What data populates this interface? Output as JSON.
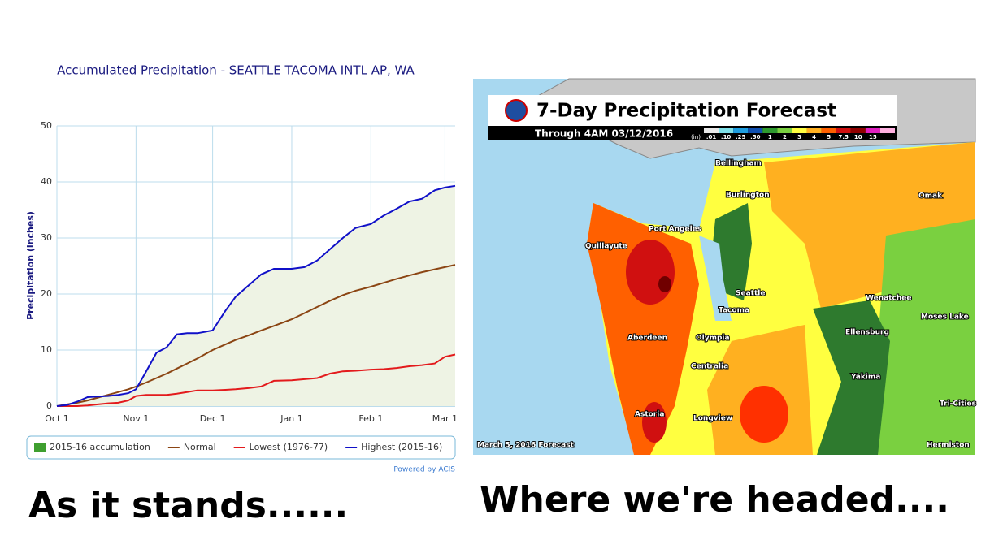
{
  "chart_data": {
    "type": "line",
    "title": "Accumulated Precipitation - SEATTLE TACOMA INTL AP, WA",
    "y_label": "Precipitation (inches)",
    "credit": "Powered by ACIS",
    "x": [
      0,
      4,
      8,
      12,
      16,
      20,
      24,
      28,
      31,
      35,
      39,
      43,
      47,
      51,
      55,
      61,
      66,
      70,
      75,
      80,
      85,
      92,
      97,
      102,
      107,
      112,
      117,
      123,
      128,
      133,
      138,
      143,
      148,
      152,
      156
    ],
    "xlim": [
      0,
      156
    ],
    "xticks": [
      {
        "value": 0,
        "label": "Oct 1"
      },
      {
        "value": 31,
        "label": "Nov 1"
      },
      {
        "value": 61,
        "label": "Dec 1"
      },
      {
        "value": 92,
        "label": "Jan 1"
      },
      {
        "value": 123,
        "label": "Feb 1"
      },
      {
        "value": 152,
        "label": "Mar 1"
      }
    ],
    "ylim": [
      0,
      50
    ],
    "yticks": [
      0,
      10,
      20,
      30,
      40,
      50
    ],
    "grid": true,
    "series": [
      {
        "name": "2015-16 accumulation",
        "color": "#3f9f2f",
        "fill": "#eef3e4",
        "style": "area",
        "values": [
          0,
          0.2,
          0.8,
          1.6,
          1.7,
          1.8,
          2,
          2.3,
          3,
          6.2,
          9.5,
          10.5,
          12.8,
          13,
          13,
          13.5,
          17,
          19.5,
          21.5,
          23.5,
          24.5,
          24.5,
          24.8,
          26,
          28,
          30,
          31.8,
          32.5,
          34,
          35.2,
          36.5,
          37,
          38.5,
          39,
          39.3
        ]
      },
      {
        "name": "Normal",
        "color": "#8b4513",
        "style": "line",
        "values": [
          0,
          0.3,
          0.6,
          1,
          1.5,
          2,
          2.5,
          3,
          3.5,
          4.2,
          5,
          5.8,
          6.7,
          7.6,
          8.5,
          10,
          11,
          11.8,
          12.6,
          13.5,
          14.3,
          15.5,
          16.6,
          17.7,
          18.8,
          19.8,
          20.6,
          21.3,
          22,
          22.7,
          23.3,
          23.9,
          24.4,
          24.8,
          25.2
        ]
      },
      {
        "name": "Lowest (1976-77)",
        "color": "#e31a1c",
        "style": "line",
        "values": [
          0,
          0,
          0,
          0.1,
          0.3,
          0.5,
          0.6,
          1,
          1.8,
          2,
          2,
          2,
          2.2,
          2.5,
          2.8,
          2.8,
          2.9,
          3,
          3.2,
          3.5,
          4.5,
          4.6,
          4.8,
          5,
          5.8,
          6.2,
          6.3,
          6.5,
          6.6,
          6.8,
          7.1,
          7.3,
          7.6,
          8.8,
          9.2
        ]
      },
      {
        "name": "Highest (2015-16)",
        "color": "#1010c8",
        "style": "line",
        "values": [
          0,
          0.2,
          0.8,
          1.6,
          1.7,
          1.8,
          2,
          2.3,
          3,
          6.2,
          9.5,
          10.5,
          12.8,
          13,
          13,
          13.5,
          17,
          19.5,
          21.5,
          23.5,
          24.5,
          24.5,
          24.8,
          26,
          28,
          30,
          31.8,
          32.5,
          34,
          35.2,
          36.5,
          37,
          38.5,
          39,
          39.3
        ]
      }
    ]
  },
  "map": {
    "title": "7-Day Precipitation Forecast",
    "subtitle": "Through 4AM 03/12/2016",
    "units": "(in)",
    "legend": [
      {
        "label": ".01",
        "color": "#e8e8e8"
      },
      {
        "label": ".10",
        "color": "#7fe0e8"
      },
      {
        "label": ".25",
        "color": "#1e9ee0"
      },
      {
        "label": ".50",
        "color": "#1050b0"
      },
      {
        "label": "1",
        "color": "#2e9a2e"
      },
      {
        "label": "2",
        "color": "#7ad040"
      },
      {
        "label": "3",
        "color": "#ffff40"
      },
      {
        "label": "4",
        "color": "#ffb020"
      },
      {
        "label": "5",
        "color": "#ff6000"
      },
      {
        "label": "7.5",
        "color": "#d01010"
      },
      {
        "label": "10",
        "color": "#900000"
      },
      {
        "label": "15",
        "color": "#e020c0"
      },
      {
        "label": "",
        "color": "#ffb0e0"
      }
    ],
    "cities": [
      "Bellingham",
      "Burlington",
      "Omak",
      "Port Angeles",
      "Quillayute",
      "Seattle",
      "Wenatchee",
      "Tacoma",
      "Moses Lake",
      "Aberdeen",
      "Olympia",
      "Ellensburg",
      "Centralia",
      "Yakima",
      "Tri-Cities",
      "Astoria",
      "Longview",
      "Hermiston"
    ],
    "footer": "March 5, 2016 Forecast"
  },
  "captions": {
    "left": "As it stands......",
    "right": "Where we're headed...."
  }
}
